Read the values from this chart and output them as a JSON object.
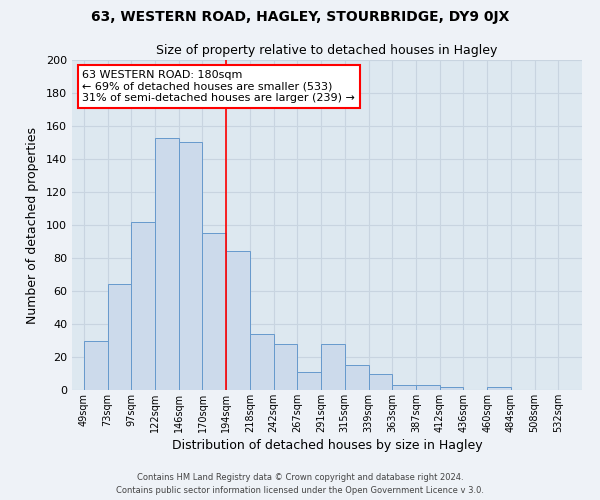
{
  "title1": "63, WESTERN ROAD, HAGLEY, STOURBRIDGE, DY9 0JX",
  "title2": "Size of property relative to detached houses in Hagley",
  "xlabel": "Distribution of detached houses by size in Hagley",
  "ylabel": "Number of detached properties",
  "bar_color": "#ccdaeb",
  "bar_edge_color": "#6699cc",
  "background_color": "#dde8f0",
  "fig_background": "#eef2f7",
  "categories": [
    "49sqm",
    "73sqm",
    "97sqm",
    "122sqm",
    "146sqm",
    "170sqm",
    "194sqm",
    "218sqm",
    "242sqm",
    "267sqm",
    "291sqm",
    "315sqm",
    "339sqm",
    "363sqm",
    "387sqm",
    "412sqm",
    "436sqm",
    "460sqm",
    "484sqm",
    "508sqm",
    "532sqm"
  ],
  "values": [
    30,
    64,
    102,
    153,
    150,
    95,
    84,
    34,
    28,
    11,
    28,
    15,
    10,
    3,
    3,
    2,
    0,
    2,
    0,
    0,
    0
  ],
  "vline_x": 6.0,
  "vline_color": "red",
  "annotation_title": "63 WESTERN ROAD: 180sqm",
  "annotation_line1": "← 69% of detached houses are smaller (533)",
  "annotation_line2": "31% of semi-detached houses are larger (239) →",
  "ylim": [
    0,
    200
  ],
  "yticks": [
    0,
    20,
    40,
    60,
    80,
    100,
    120,
    140,
    160,
    180,
    200
  ],
  "footer1": "Contains HM Land Registry data © Crown copyright and database right 2024.",
  "footer2": "Contains public sector information licensed under the Open Government Licence v 3.0."
}
